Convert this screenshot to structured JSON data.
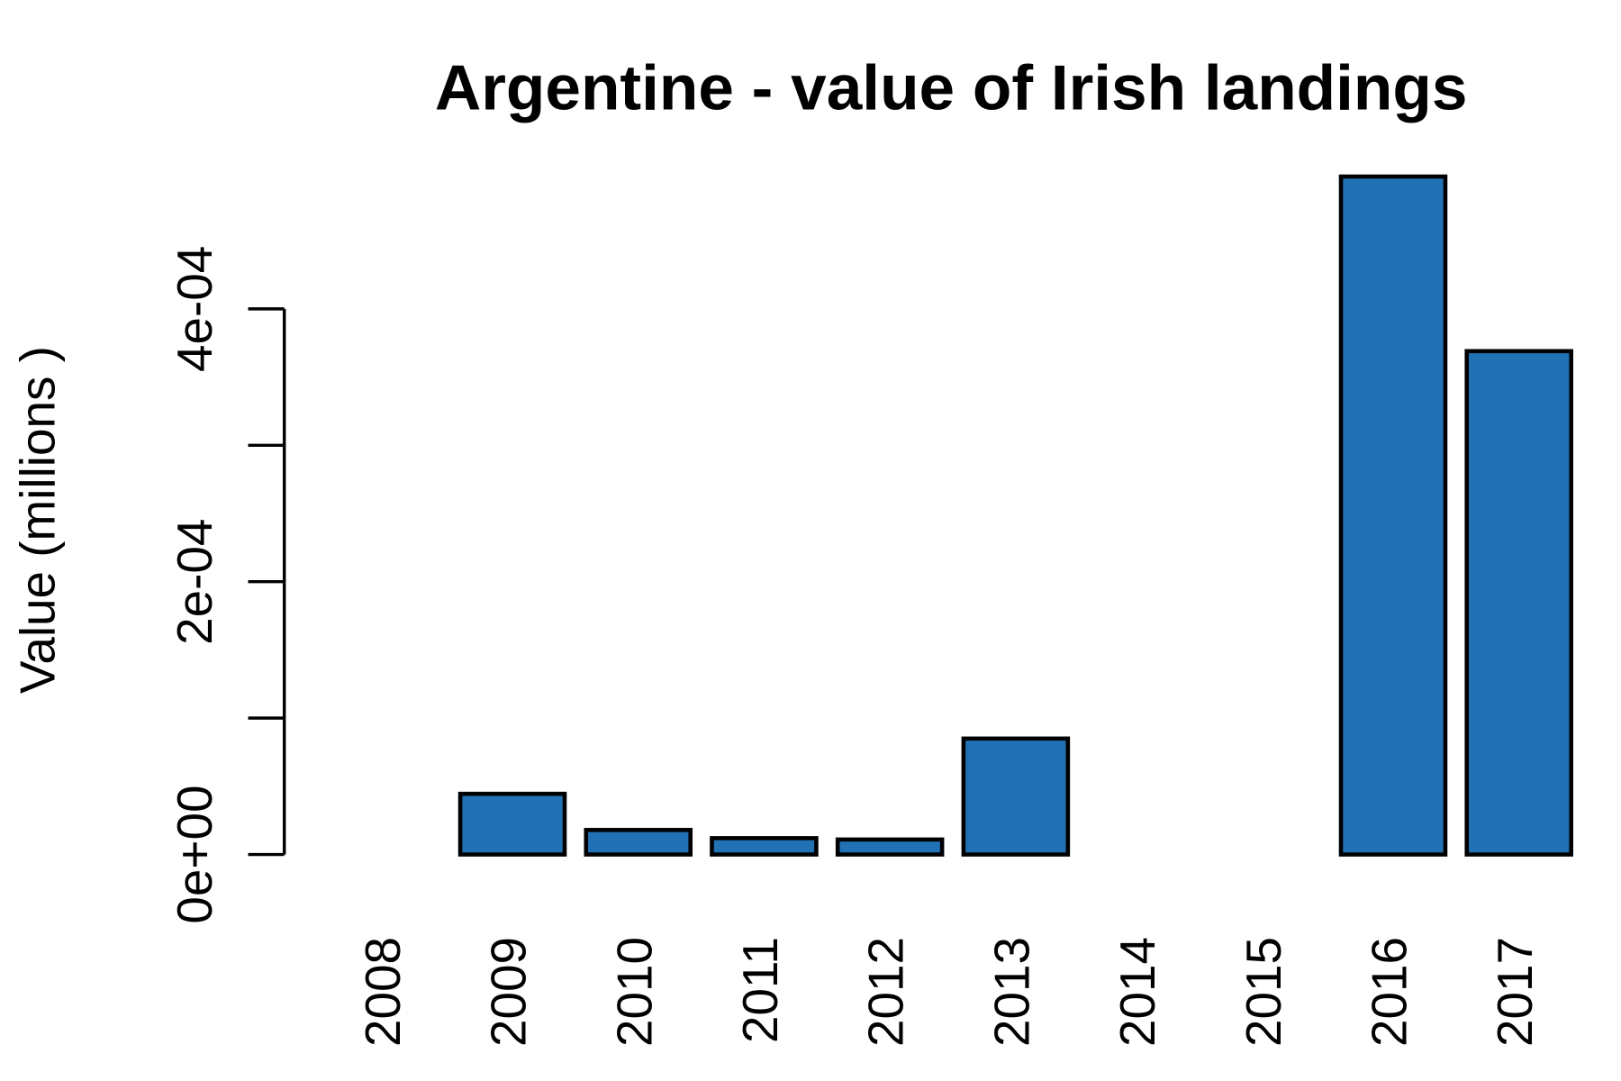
{
  "chart_data": {
    "type": "bar",
    "title": "Argentine - value of Irish landings",
    "y_label": "Value (millions )",
    "categories": [
      "2008",
      "2009",
      "2010",
      "2011",
      "2012",
      "2013",
      "2014",
      "2015",
      "2016",
      "2017"
    ],
    "values": [
      null,
      4.45e-05,
      1.8e-05,
      1.2e-05,
      1.1e-05,
      8.5e-05,
      null,
      null,
      0.000497,
      0.000369
    ],
    "color": "#2171b5",
    "ylim": [
      0,
      0.0005
    ],
    "yticks": [
      {
        "value": 0,
        "label": "0e+00"
      },
      {
        "value": 0.0002,
        "label": "2e-04"
      },
      {
        "value": 0.0004,
        "label": "4e-04"
      }
    ],
    "yminor_ticks": [
      0.0001,
      0.0003
    ],
    "grid": false
  }
}
